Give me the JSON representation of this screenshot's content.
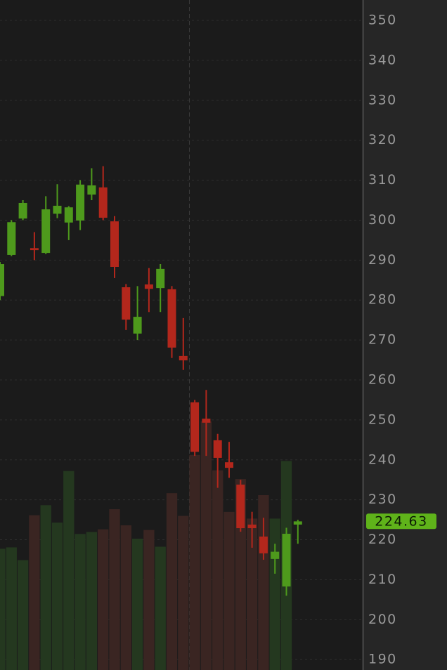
{
  "chart_data": {
    "type": "candlestick",
    "categories": [
      null,
      null,
      null,
      null,
      null,
      null,
      null,
      null,
      null,
      null,
      null,
      null,
      null,
      null,
      null,
      null,
      null,
      null,
      null,
      null,
      null,
      null,
      null,
      null,
      null,
      null,
      null
    ],
    "open": [
      281,
      291.3,
      300.4,
      293,
      291.8,
      301.6,
      299.4,
      299.9,
      306.4,
      308.2,
      299.7,
      283.2,
      271.6,
      283.9,
      283,
      282.7,
      266,
      254.4,
      250.3,
      244.9,
      239.4,
      233.8,
      223.8,
      220.8,
      215.2,
      208.3,
      223.8
    ],
    "high": [
      289.5,
      300,
      305,
      297,
      306,
      309,
      303.5,
      310,
      313,
      313.5,
      301,
      284,
      283.5,
      288,
      289,
      283.5,
      275.5,
      255,
      257.5,
      246.5,
      244.5,
      235,
      227,
      225.5,
      219,
      223,
      225
    ],
    "low": [
      280,
      291,
      300,
      290,
      291.5,
      300.5,
      295,
      297.5,
      305,
      300,
      285.5,
      272.5,
      270,
      277,
      277,
      265.5,
      262.5,
      241,
      241,
      233,
      235.5,
      222,
      218,
      215,
      211.5,
      206,
      219
    ],
    "close": [
      289,
      299.5,
      304.3,
      292.5,
      302.7,
      303.6,
      303.2,
      308.9,
      308.7,
      300.6,
      288.3,
      275.1,
      275.8,
      282.8,
      287.8,
      268.1,
      264.9,
      242,
      249.3,
      240.5,
      238,
      222.9,
      222.9,
      216.6,
      217,
      221.5,
      224.6
    ],
    "volume": [
      18.1,
      18.3,
      16.4,
      23.1,
      24.6,
      22.0,
      29.7,
      20.3,
      20.6,
      21.0,
      24.0,
      21.6,
      19.6,
      20.9,
      18.4,
      26.4,
      23.0,
      32.1,
      37.1,
      29.8,
      23.6,
      28.5,
      22.6,
      26.1,
      22.6,
      31.2,
      null
    ],
    "vlim": [
      0,
      100
    ],
    "up_color": "#4e9a1c",
    "down_color": "#b3271c",
    "up_volume_color": "#24381f",
    "down_volume_color": "#3a2522",
    "last_price": 224.63,
    "ylim": [
      187.4,
      355.1
    ],
    "yticks": [
      190,
      200,
      210,
      220,
      230,
      240,
      250,
      260,
      270,
      280,
      290,
      300,
      310,
      320,
      330,
      340,
      350
    ],
    "grid": true
  }
}
